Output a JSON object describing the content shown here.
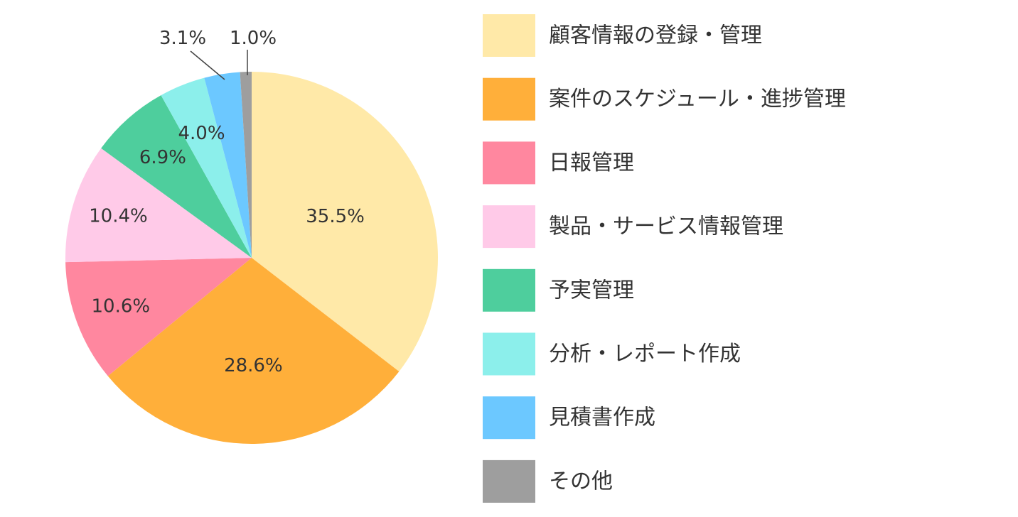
{
  "chart_data": {
    "type": "pie",
    "title": "",
    "start_angle": "12 o'clock",
    "direction": "clockwise",
    "legend_position": "right",
    "slices": [
      {
        "label": "顧客情報の登録・管理",
        "value": 35.5,
        "value_label": "35.5%",
        "color": "#FFE9A8"
      },
      {
        "label": "案件のスケジュール・進捗管理",
        "value": 28.6,
        "value_label": "28.6%",
        "color": "#FFAF3A"
      },
      {
        "label": "日報管理",
        "value": 10.6,
        "value_label": "10.6%",
        "color": "#FF879F"
      },
      {
        "label": "製品・サービス情報管理",
        "value": 10.4,
        "value_label": "10.4%",
        "color": "#FFCAE8"
      },
      {
        "label": "予実管理",
        "value": 6.9,
        "value_label": "6.9%",
        "color": "#4ECE9D"
      },
      {
        "label": "分析・レポート作成",
        "value": 4.0,
        "value_label": "4.0%",
        "color": "#8CEFEB"
      },
      {
        "label": "見積書作成",
        "value": 3.1,
        "value_label": "3.1%",
        "color": "#6CC8FF"
      },
      {
        "label": "その他",
        "value": 1.0,
        "value_label": "1.0%",
        "color": "#9E9E9E"
      }
    ]
  }
}
